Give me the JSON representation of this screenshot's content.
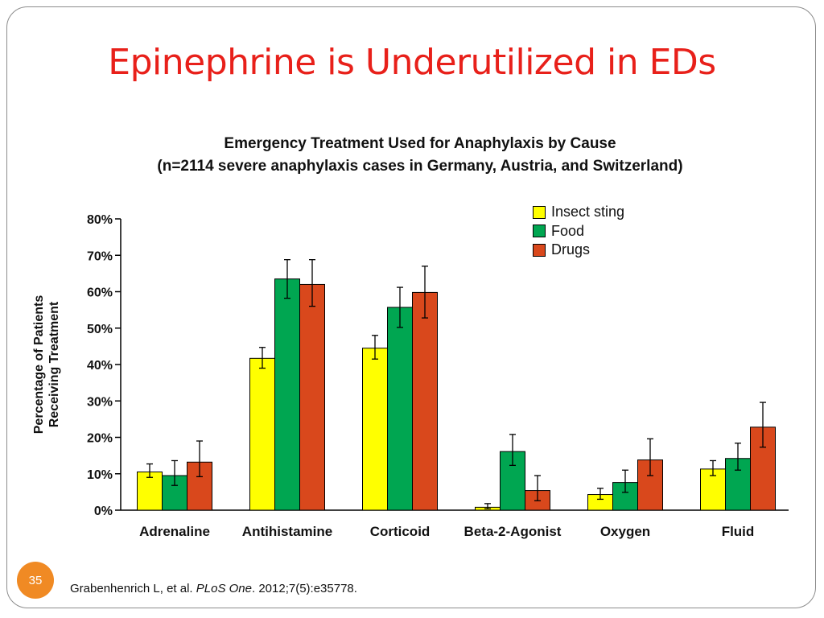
{
  "slide": {
    "title": "Epinephrine is Underutilized in EDs",
    "page_number": "35",
    "citation": {
      "authors": "Grabenhenrich L, et al.",
      "journal": "PLoS One",
      "details": ". 2012;7(5):e35778."
    }
  },
  "colors": {
    "title": "#e8201a",
    "insect_sting": "#ffff00",
    "food": "#00a651",
    "drugs": "#d9481c",
    "page_badge": "#f08a24"
  },
  "chart_data": {
    "type": "bar",
    "title": "Emergency Treatment Used for Anaphylaxis by Cause",
    "subtitle": "(n=2114 severe anaphylaxis cases in Germany, Austria, and Switzerland)",
    "ylabel": "Percentage of Patients Receiving Treatment",
    "ylabel_lines": [
      "Percentage of Patients",
      "Receiving Treatment"
    ],
    "ylim": [
      0,
      80
    ],
    "yticks": [
      0,
      10,
      20,
      30,
      40,
      50,
      60,
      70,
      80
    ],
    "ytick_labels": [
      "0%",
      "10%",
      "20%",
      "30%",
      "40%",
      "50%",
      "60%",
      "70%",
      "80%"
    ],
    "categories": [
      "Adrenaline",
      "Antihistamine",
      "Corticoid",
      "Beta-2-Agonist",
      "Oxygen",
      "Fluid"
    ],
    "series": [
      {
        "name": "Insect sting",
        "color": "#ffff00",
        "values": [
          10.5,
          41.7,
          44.5,
          0.8,
          4.3,
          11.3
        ],
        "error_low": [
          9.0,
          39.0,
          41.5,
          0.4,
          3.0,
          9.5
        ],
        "error_high": [
          12.7,
          44.7,
          48.0,
          1.8,
          6.0,
          13.6
        ]
      },
      {
        "name": "Food",
        "color": "#00a651",
        "values": [
          9.5,
          63.5,
          55.7,
          16.1,
          7.6,
          14.2
        ],
        "error_low": [
          6.8,
          58.2,
          50.2,
          12.3,
          4.9,
          11.0
        ],
        "error_high": [
          13.6,
          68.8,
          61.2,
          20.8,
          11.0,
          18.4
        ]
      },
      {
        "name": "Drugs",
        "color": "#d9481c",
        "values": [
          13.2,
          62.0,
          59.8,
          5.4,
          13.8,
          22.8
        ],
        "error_low": [
          9.2,
          56.0,
          52.8,
          2.6,
          9.5,
          17.3
        ],
        "error_high": [
          19.0,
          68.8,
          67.0,
          9.5,
          19.6,
          29.6
        ]
      }
    ],
    "grid": false,
    "legend_position": "top-right"
  }
}
